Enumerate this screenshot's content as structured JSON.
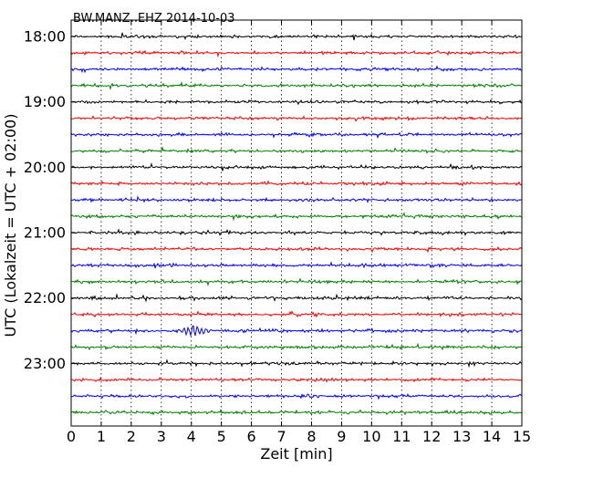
{
  "chart_data": {
    "type": "line",
    "title": "BW.MANZ..EHZ 2014-10-03",
    "xlabel": "Zeit  [min]",
    "ylabel": "UTC (Lokalzeit = UTC + 02:00)",
    "xlim": [
      0,
      15
    ],
    "x_ticks": [
      0,
      1,
      2,
      3,
      4,
      5,
      6,
      7,
      8,
      9,
      10,
      11,
      12,
      13,
      14,
      15
    ],
    "y_tick_labels": [
      "18:00",
      "19:00",
      "20:00",
      "21:00",
      "22:00",
      "23:00"
    ],
    "grid": "vertical dotted at each minute",
    "series": [
      {
        "start": "18:00",
        "color": "#000000",
        "amplitude": 3
      },
      {
        "start": "18:15",
        "color": "#ff0000",
        "amplitude": 3
      },
      {
        "start": "18:30",
        "color": "#0000ff",
        "amplitude": 3
      },
      {
        "start": "18:45",
        "color": "#007f00",
        "amplitude": 3
      },
      {
        "start": "19:00",
        "color": "#000000",
        "amplitude": 3
      },
      {
        "start": "19:15",
        "color": "#ff0000",
        "amplitude": 3
      },
      {
        "start": "19:30",
        "color": "#0000ff",
        "amplitude": 3
      },
      {
        "start": "19:45",
        "color": "#007f00",
        "amplitude": 3
      },
      {
        "start": "20:00",
        "color": "#000000",
        "amplitude": 3
      },
      {
        "start": "20:15",
        "color": "#ff0000",
        "amplitude": 3
      },
      {
        "start": "20:30",
        "color": "#0000ff",
        "amplitude": 3
      },
      {
        "start": "20:45",
        "color": "#007f00",
        "amplitude": 3
      },
      {
        "start": "21:00",
        "color": "#000000",
        "amplitude": 3
      },
      {
        "start": "21:15",
        "color": "#ff0000",
        "amplitude": 3
      },
      {
        "start": "21:30",
        "color": "#0000ff",
        "amplitude": 3
      },
      {
        "start": "21:45",
        "color": "#007f00",
        "amplitude": 3
      },
      {
        "start": "22:00",
        "color": "#000000",
        "amplitude": 3
      },
      {
        "start": "22:15",
        "color": "#ff0000",
        "amplitude": 3
      },
      {
        "start": "22:30",
        "color": "#0000ff",
        "amplitude": 3
      },
      {
        "start": "22:45",
        "color": "#007f00",
        "amplitude": 3
      },
      {
        "start": "23:00",
        "color": "#000000",
        "amplitude": 3
      },
      {
        "start": "23:15",
        "color": "#ff0000",
        "amplitude": 3
      },
      {
        "start": "23:30",
        "color": "#0000ff",
        "amplitude": 3
      },
      {
        "start": "23:45",
        "color": "#007f00",
        "amplitude": 3
      }
    ],
    "events": [
      {
        "start": "22:30",
        "minutes": [
          3.5,
          4.6
        ],
        "amplitude": 6
      }
    ]
  }
}
